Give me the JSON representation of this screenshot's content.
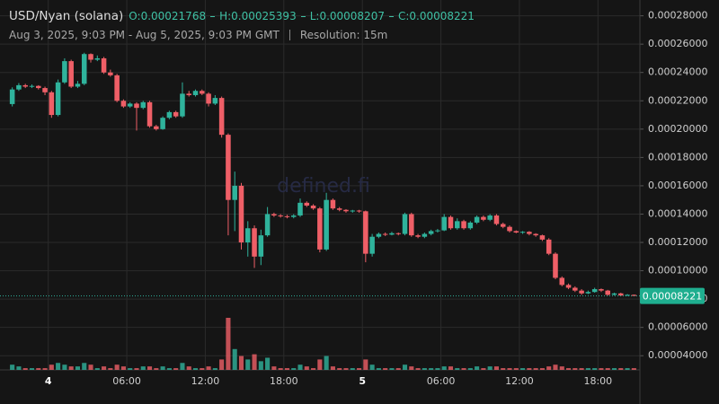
{
  "chart_data": {
    "type": "candlestick",
    "title": "USD/Nyan (solana)",
    "ohlc": [
      {
        "label": "O:",
        "value": 0.00021768
      },
      {
        "label": "H:",
        "value": 0.00025393
      },
      {
        "label": "L:",
        "value": 8.207e-05
      },
      {
        "label": "C:",
        "value": 8.221e-05
      }
    ],
    "range_text": "Aug 3, 2025, 9:03 PM - Aug 5, 2025, 9:03 PM GMT",
    "resolution": "Resolution: 15m",
    "watermark": "defined.fi",
    "up_color": "#2fb39c",
    "down_color": "#ef5f67",
    "grid": true,
    "ylim": [
      3e-05,
      0.000288
    ],
    "yticks": [
      {
        "value": 4e-05,
        "label": "0.00004000"
      },
      {
        "value": 6e-05,
        "label": "0.00006000"
      },
      {
        "value": 8e-05,
        "label": "0.00008000"
      },
      {
        "value": 0.0001,
        "label": "0.00010000"
      },
      {
        "value": 0.00012,
        "label": "0.00012000"
      },
      {
        "value": 0.00014,
        "label": "0.00014000"
      },
      {
        "value": 0.00016,
        "label": "0.00016000"
      },
      {
        "value": 0.00018,
        "label": "0.00018000"
      },
      {
        "value": 0.0002,
        "label": "0.00020000"
      },
      {
        "value": 0.00022,
        "label": "0.00022000"
      },
      {
        "value": 0.00024,
        "label": "0.00024000"
      },
      {
        "value": 0.00026,
        "label": "0.00026000"
      },
      {
        "value": 0.00028,
        "label": "0.00028000"
      }
    ],
    "xlim": [
      0,
      96
    ],
    "xticks": [
      {
        "value": 6,
        "label": "4"
      },
      {
        "value": 18,
        "label": "06:00"
      },
      {
        "value": 30,
        "label": "12:00"
      },
      {
        "value": 42,
        "label": "18:00"
      },
      {
        "value": 54,
        "label": "5"
      },
      {
        "value": 66,
        "label": "06:00"
      },
      {
        "value": 78,
        "label": "12:00"
      },
      {
        "value": 90,
        "label": "18:00"
      }
    ],
    "candles": [
      [
        0.00021768,
        0.0002295,
        0.000216,
        0.000228
      ],
      [
        0.000228,
        0.0002325,
        0.000227,
        0.000231
      ],
      [
        0.000231,
        0.000232,
        0.000229,
        0.00023
      ],
      [
        0.00023,
        0.0002315,
        0.000229,
        0.0002305
      ],
      [
        0.0002305,
        0.000231,
        0.000228,
        0.000229
      ],
      [
        0.000229,
        0.00023,
        0.000224,
        0.000226
      ],
      [
        0.000226,
        0.000227,
        0.000208,
        0.00021
      ],
      [
        0.00021,
        0.000235,
        0.000209,
        0.000233
      ],
      [
        0.000233,
        0.00025,
        0.000232,
        0.000248
      ],
      [
        0.000248,
        0.000249,
        0.000229,
        0.00023
      ],
      [
        0.00023,
        0.000234,
        0.000229,
        0.000232
      ],
      [
        0.000232,
        0.00025393,
        0.000231,
        0.000253
      ],
      [
        0.000253,
        0.0002535,
        0.000247,
        0.000249
      ],
      [
        0.000249,
        0.000252,
        0.000248,
        0.00025
      ],
      [
        0.00025,
        0.000251,
        0.000239,
        0.00024
      ],
      [
        0.00024,
        0.000242,
        0.000237,
        0.000238
      ],
      [
        0.000238,
        0.000239,
        0.000219,
        0.00022
      ],
      [
        0.00022,
        0.000221,
        0.000215,
        0.000216
      ],
      [
        0.000216,
        0.000219,
        0.000215,
        0.000218
      ],
      [
        0.000218,
        0.000219,
        0.000199,
        0.000215
      ],
      [
        0.000215,
        0.00022,
        0.000214,
        0.000219
      ],
      [
        0.000219,
        0.00022,
        0.000201,
        0.000202
      ],
      [
        0.000202,
        0.000203,
        0.000199,
        0.0002
      ],
      [
        0.0002,
        0.000209,
        0.0001995,
        0.000208
      ],
      [
        0.000208,
        0.000213,
        0.000207,
        0.000212
      ],
      [
        0.000212,
        0.000213,
        0.000208,
        0.000209
      ],
      [
        0.000209,
        0.000233,
        0.000208,
        0.000225
      ],
      [
        0.000225,
        0.000227,
        0.000223,
        0.000224
      ],
      [
        0.000224,
        0.000228,
        0.000223,
        0.000227
      ],
      [
        0.000227,
        0.000228,
        0.000224,
        0.000225
      ],
      [
        0.000225,
        0.000226,
        0.000216,
        0.000218
      ],
      [
        0.000218,
        0.000224,
        0.000217,
        0.000222
      ],
      [
        0.000222,
        0.000223,
        0.000194,
        0.000196
      ],
      [
        0.000196,
        0.000197,
        0.000125,
        0.00015
      ],
      [
        0.00015,
        0.00017,
        0.000128,
        0.00016
      ],
      [
        0.00016,
        0.000162,
        0.000115,
        0.00012
      ],
      [
        0.00012,
        0.000135,
        0.00011,
        0.00013
      ],
      [
        0.00013,
        0.000132,
        0.000102,
        0.00011
      ],
      [
        0.00011,
        0.000129,
        0.000104,
        0.000125
      ],
      [
        0.000125,
        0.000145,
        0.000124,
        0.00014
      ],
      [
        0.00014,
        0.000141,
        0.000138,
        0.000139
      ],
      [
        0.000139,
        0.00014,
        0.0001375,
        0.0001385
      ],
      [
        0.0001385,
        0.0001395,
        0.000137,
        0.000138
      ],
      [
        0.000138,
        0.00014,
        0.000137,
        0.000139
      ],
      [
        0.000139,
        0.000151,
        0.000138,
        0.000148
      ],
      [
        0.000148,
        0.000149,
        0.000145,
        0.000146
      ],
      [
        0.000146,
        0.000147,
        0.000143,
        0.000144
      ],
      [
        0.000144,
        0.000145,
        0.000113,
        0.000115
      ],
      [
        0.000115,
        0.000155,
        0.000114,
        0.00015
      ],
      [
        0.00015,
        0.000151,
        0.000143,
        0.000144
      ],
      [
        0.000144,
        0.000145,
        0.000142,
        0.000143
      ],
      [
        0.000143,
        0.0001435,
        0.000141,
        0.000142
      ],
      [
        0.000142,
        0.000143,
        0.000141,
        0.0001425
      ],
      [
        0.0001425,
        0.000143,
        0.000141,
        0.000142
      ],
      [
        0.000142,
        0.0001425,
        0.000106,
        0.000112
      ],
      [
        0.000112,
        0.000126,
        0.00011,
        0.000124
      ],
      [
        0.000124,
        0.000127,
        0.000123,
        0.000126
      ],
      [
        0.000126,
        0.000127,
        0.0001245,
        0.0001255
      ],
      [
        0.0001255,
        0.0001275,
        0.000125,
        0.0001265
      ],
      [
        0.0001265,
        0.000127,
        0.000125,
        0.000126
      ],
      [
        0.000126,
        0.000141,
        0.000125,
        0.00014
      ],
      [
        0.00014,
        0.000141,
        0.000124,
        0.000125
      ],
      [
        0.000125,
        0.000126,
        0.000123,
        0.000124
      ],
      [
        0.000124,
        0.000127,
        0.000123,
        0.000126
      ],
      [
        0.000126,
        0.000129,
        0.000125,
        0.000128
      ],
      [
        0.000128,
        0.0001295,
        0.000127,
        0.0001285
      ],
      [
        0.0001285,
        0.00014,
        0.000128,
        0.000138
      ],
      [
        0.000138,
        0.000139,
        0.000129,
        0.00013
      ],
      [
        0.00013,
        0.000137,
        0.000129,
        0.000135
      ],
      [
        0.000135,
        0.000136,
        0.000129,
        0.00013
      ],
      [
        0.00013,
        0.000135,
        0.000129,
        0.000134
      ],
      [
        0.000134,
        0.000139,
        0.000133,
        0.000138
      ],
      [
        0.000138,
        0.000139,
        0.000135,
        0.000136
      ],
      [
        0.000136,
        0.00014,
        0.000135,
        0.000139
      ],
      [
        0.000139,
        0.00014,
        0.000132,
        0.000133
      ],
      [
        0.000133,
        0.000134,
        0.00013,
        0.000131
      ],
      [
        0.000131,
        0.000132,
        0.000127,
        0.000128
      ],
      [
        0.000128,
        0.0001285,
        0.0001265,
        0.000127
      ],
      [
        0.000127,
        0.000128,
        0.000126,
        0.0001275
      ],
      [
        0.0001275,
        0.000128,
        0.000125,
        0.000126
      ],
      [
        0.000126,
        0.0001265,
        0.000124,
        0.000125
      ],
      [
        0.000125,
        0.0001255,
        0.000121,
        0.000122
      ],
      [
        0.000122,
        0.000123,
        0.000111,
        0.000112
      ],
      [
        0.000112,
        0.000113,
        9.4e-05,
        9.5e-05
      ],
      [
        9.5e-05,
        9.6e-05,
        8.9e-05,
        9e-05
      ],
      [
        9e-05,
        9.1e-05,
        8.7e-05,
        8.8e-05
      ],
      [
        8.8e-05,
        8.9e-05,
        8.5e-05,
        8.6e-05
      ],
      [
        8.6e-05,
        8.7e-05,
        8.3e-05,
        8.4e-05
      ],
      [
        8.4e-05,
        8.6e-05,
        8.35e-05,
        8.5e-05
      ],
      [
        8.5e-05,
        8.8e-05,
        8.45e-05,
        8.7e-05
      ],
      [
        8.7e-05,
        8.75e-05,
        8.5e-05,
        8.6e-05
      ],
      [
        8.6e-05,
        8.65e-05,
        8.25e-05,
        8.3e-05
      ],
      [
        8.3e-05,
        8.45e-05,
        8.25e-05,
        8.4e-05
      ],
      [
        8.4e-05,
        8.45e-05,
        8.207e-05,
        8.25e-05
      ],
      [
        8.25e-05,
        8.35e-05,
        8.22e-05,
        8.3e-05
      ],
      [
        8.3e-05,
        8.32e-05,
        8.207e-05,
        8.221e-05
      ]
    ],
    "volume": [
      3,
      2,
      1,
      1,
      1,
      1,
      3,
      4,
      3,
      2,
      2,
      4,
      3,
      1,
      2,
      1,
      3,
      2,
      1,
      1,
      2,
      2,
      1,
      2,
      1,
      1,
      4,
      2,
      1,
      1,
      2,
      1,
      6,
      30,
      12,
      8,
      6,
      9,
      5,
      7,
      2,
      1,
      1,
      1,
      3,
      2,
      1,
      6,
      8,
      2,
      1,
      1,
      1,
      1,
      6,
      3,
      1,
      1,
      1,
      1,
      3,
      2,
      1,
      1,
      1,
      1,
      2,
      2,
      1,
      1,
      1,
      2,
      1,
      2,
      2,
      1,
      1,
      1,
      1,
      1,
      1,
      1,
      2,
      3,
      2,
      1,
      1,
      1,
      1,
      1,
      1,
      1,
      1,
      1,
      1,
      1
    ]
  }
}
